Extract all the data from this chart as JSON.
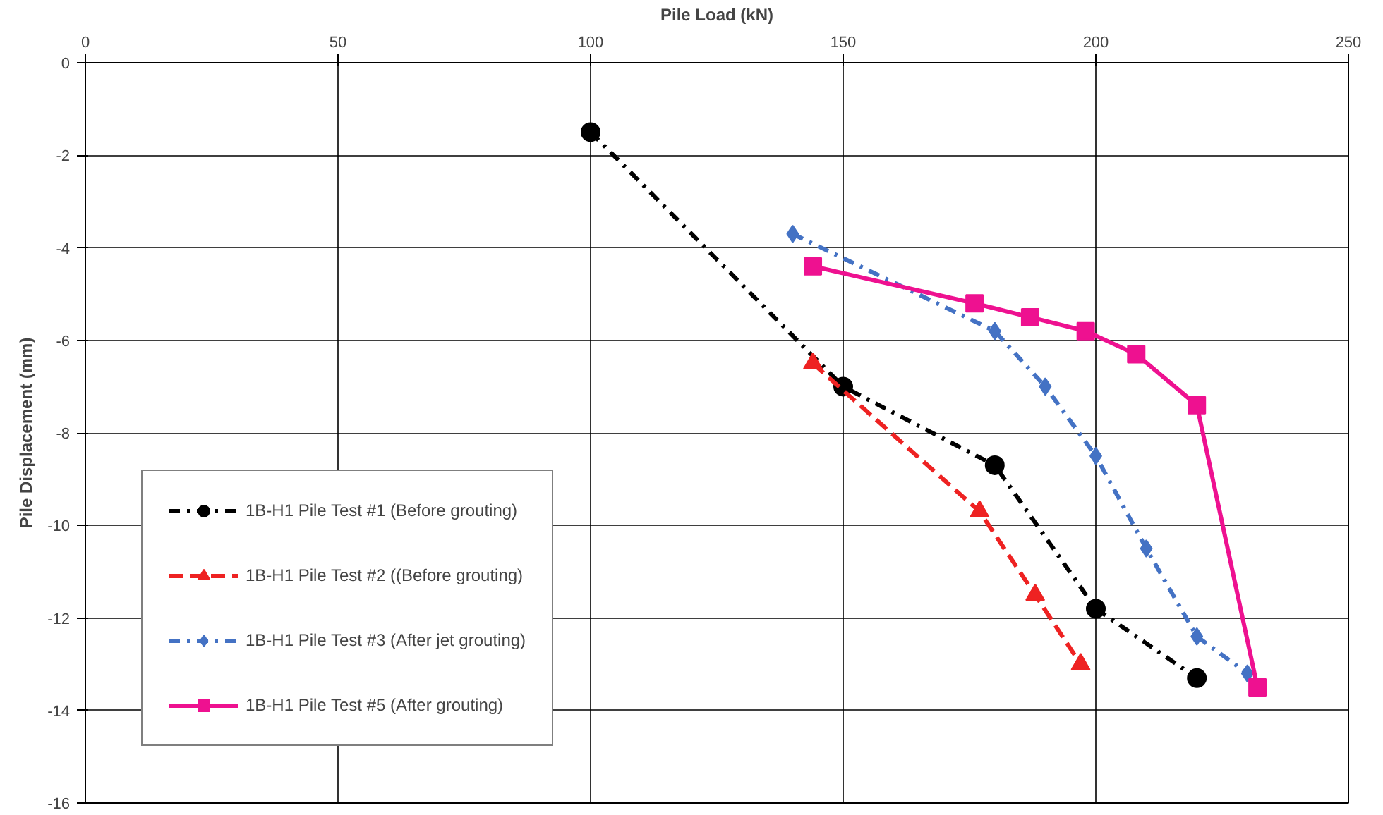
{
  "chart_data": {
    "type": "line",
    "xlabel": "Pile Load (kN)",
    "ylabel": "Pile Displacement (mm)",
    "xlim": [
      0,
      250
    ],
    "xticks": [
      0,
      50,
      100,
      150,
      200,
      250
    ],
    "ylim": [
      -16,
      0
    ],
    "yticks": [
      -16,
      -14,
      -12,
      -10,
      -8,
      -6,
      -4,
      -2,
      0
    ],
    "grid": true,
    "legend": "bottom left",
    "series": [
      {
        "name": "1B-H1 Pile Test #1 (Before grouting)",
        "color": "#000000",
        "marker": "circle",
        "line_style": "dashdot",
        "x": [
          100,
          150,
          180,
          200,
          220
        ],
        "values": [
          -1.5,
          -7.0,
          -8.7,
          -11.8,
          -13.3
        ]
      },
      {
        "name": "1B-H1 Pile Test #2 ((Before grouting)",
        "color": "#ee2222",
        "marker": "triangle",
        "line_style": "dashed",
        "x": [
          144,
          177,
          188,
          197
        ],
        "values": [
          -6.5,
          -9.7,
          -11.5,
          -13.0
        ]
      },
      {
        "name": "1B-H1 Pile Test #3 (After jet grouting)",
        "color": "#4472c4",
        "marker": "diamond",
        "line_style": "dashdot",
        "x": [
          140,
          180,
          190,
          200,
          210,
          220,
          230
        ],
        "values": [
          -3.7,
          -5.8,
          -7.0,
          -8.5,
          -10.5,
          -12.4,
          -13.2
        ]
      },
      {
        "name": "1B-H1 Pile Test #5 (After grouting)",
        "color": "#ee1190",
        "marker": "square",
        "line_style": "solid",
        "x": [
          144,
          176,
          187,
          198,
          208,
          220,
          232
        ],
        "values": [
          -4.4,
          -5.2,
          -5.5,
          -5.8,
          -6.3,
          -7.4,
          -13.5
        ]
      }
    ]
  }
}
